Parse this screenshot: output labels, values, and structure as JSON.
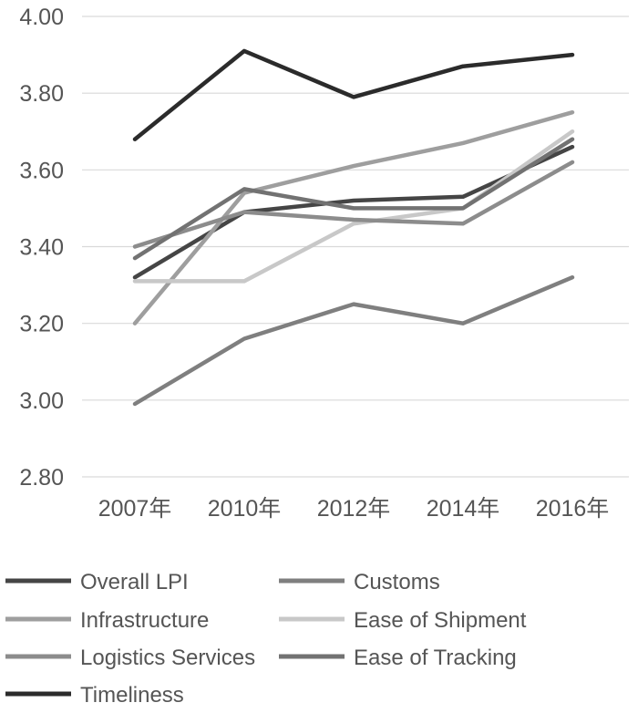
{
  "chart_data": {
    "type": "line",
    "categories": [
      "2007年",
      "2010年",
      "2012年",
      "2014年",
      "2016年"
    ],
    "ylim": [
      2.8,
      4.0
    ],
    "yticks": [
      "2.80",
      "3.00",
      "3.20",
      "3.40",
      "3.60",
      "3.80",
      "4.00"
    ],
    "grid": true,
    "legend_position": "bottom",
    "series": [
      {
        "name": "Overall LPI",
        "color": "#454545",
        "values": [
          3.32,
          3.49,
          3.52,
          3.53,
          3.66
        ]
      },
      {
        "name": "Customs",
        "color": "#7f7f7f",
        "values": [
          2.99,
          3.16,
          3.25,
          3.2,
          3.32
        ]
      },
      {
        "name": "Infrastructure",
        "color": "#9e9e9e",
        "values": [
          3.2,
          3.54,
          3.61,
          3.67,
          3.75
        ]
      },
      {
        "name": "Ease of Shipment",
        "color": "#c8c8c8",
        "values": [
          3.31,
          3.31,
          3.46,
          3.5,
          3.7
        ]
      },
      {
        "name": "Logistics Services",
        "color": "#8c8c8c",
        "values": [
          3.4,
          3.49,
          3.47,
          3.46,
          3.62
        ]
      },
      {
        "name": "Ease of Tracking",
        "color": "#727272",
        "values": [
          3.37,
          3.55,
          3.5,
          3.5,
          3.68
        ]
      },
      {
        "name": "Timeliness",
        "color": "#2b2b2b",
        "values": [
          3.68,
          3.91,
          3.79,
          3.87,
          3.9
        ]
      }
    ]
  }
}
